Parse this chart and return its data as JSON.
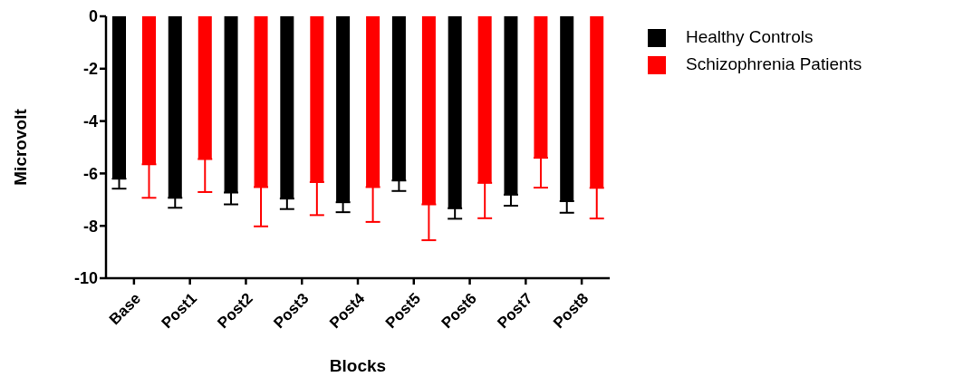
{
  "chart_data": {
    "type": "bar",
    "xlabel": "Blocks",
    "ylabel": "Microvolt",
    "categories": [
      "Base",
      "Post1",
      "Post2",
      "Post3",
      "Post4",
      "Post5",
      "Post6",
      "Post7",
      "Post8"
    ],
    "series": [
      {
        "name": "Healthy Controls",
        "color": "#000000",
        "values": [
          -6.2,
          -6.93,
          -6.73,
          -6.96,
          -7.1,
          -6.27,
          -7.33,
          -6.81,
          -7.06
        ],
        "errors": [
          [
            -6.58,
            -6.2
          ],
          [
            -7.31,
            -6.93
          ],
          [
            -7.18,
            -6.73
          ],
          [
            -7.36,
            -6.96
          ],
          [
            -7.48,
            -7.1
          ],
          [
            -6.67,
            -6.27
          ],
          [
            -7.73,
            -7.33
          ],
          [
            -7.23,
            -6.81
          ],
          [
            -7.5,
            -7.06
          ]
        ]
      },
      {
        "name": "Schizophrenia Patients",
        "color": "#ff0000",
        "values": [
          -5.65,
          -5.45,
          -6.52,
          -6.33,
          -6.52,
          -7.18,
          -6.36,
          -5.4,
          -6.55
        ],
        "errors": [
          [
            -6.93,
            -5.65
          ],
          [
            -6.71,
            -5.45
          ],
          [
            -8.02,
            -6.52
          ],
          [
            -7.59,
            -6.33
          ],
          [
            -7.85,
            -6.52
          ],
          [
            -8.55,
            -7.18
          ],
          [
            -7.71,
            -6.36
          ],
          [
            -6.54,
            -5.4
          ],
          [
            -7.72,
            -6.55
          ]
        ]
      }
    ],
    "ylim": [
      -10,
      0
    ],
    "yticks": [
      -10,
      -8,
      -6,
      -4,
      -2,
      0
    ],
    "grid": false,
    "legend": "top right"
  }
}
